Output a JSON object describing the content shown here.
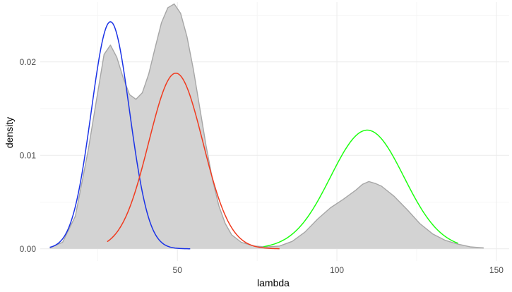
{
  "chart_data": {
    "type": "area",
    "xlabel": "lambda",
    "ylabel": "density",
    "xlim": [
      7,
      154
    ],
    "ylim": [
      -0.0013,
      0.0264
    ],
    "x_ticks": [
      50,
      100,
      150
    ],
    "y_ticks": [
      0.0,
      0.01,
      0.02
    ],
    "x_tick_labels": [
      "50",
      "100",
      "150"
    ],
    "y_tick_labels": [
      "0.00",
      "0.01",
      "0.02"
    ],
    "grid": true,
    "legend": "none",
    "series": [
      {
        "kind": "filled-density",
        "color": "#a6a6a6",
        "fill": "#d3d3d3",
        "x": [
          10,
          14,
          18,
          22,
          25,
          27,
          29,
          31,
          33,
          35,
          37,
          39,
          41,
          43,
          45,
          47,
          49,
          51,
          53,
          55,
          57,
          59,
          61,
          63,
          65,
          67,
          70,
          74,
          78,
          82,
          86,
          90,
          94,
          98,
          102,
          106,
          108,
          110,
          112,
          114,
          118,
          122,
          126,
          130,
          134,
          138,
          142,
          146
        ],
        "y": [
          0.0001,
          0.0007,
          0.0035,
          0.0105,
          0.0167,
          0.0208,
          0.0218,
          0.0205,
          0.0183,
          0.0165,
          0.016,
          0.0167,
          0.0187,
          0.0215,
          0.0242,
          0.0258,
          0.0262,
          0.0252,
          0.0227,
          0.0192,
          0.0151,
          0.011,
          0.0074,
          0.0046,
          0.0027,
          0.0015,
          0.0007,
          0.0003,
          0.0002,
          0.0003,
          0.0008,
          0.0018,
          0.0032,
          0.0044,
          0.0053,
          0.0063,
          0.0069,
          0.0072,
          0.007,
          0.0067,
          0.0056,
          0.0042,
          0.0027,
          0.0016,
          0.0009,
          0.0005,
          0.0002,
          0.0001
        ]
      },
      {
        "kind": "normal-curve",
        "color": "#1a32e6",
        "mean": 29,
        "peak": 0.0243,
        "sd": 6,
        "x_range": [
          10,
          54
        ]
      },
      {
        "kind": "normal-curve",
        "color": "#f03a1e",
        "mean": 49.5,
        "peak": 0.0188,
        "sd": 8.5,
        "x_range": [
          28,
          82
        ]
      },
      {
        "kind": "normal-curve",
        "color": "#1dff10",
        "mean": 109.5,
        "peak": 0.0127,
        "sd": 11.5,
        "x_range": [
          77,
          138
        ]
      }
    ]
  }
}
